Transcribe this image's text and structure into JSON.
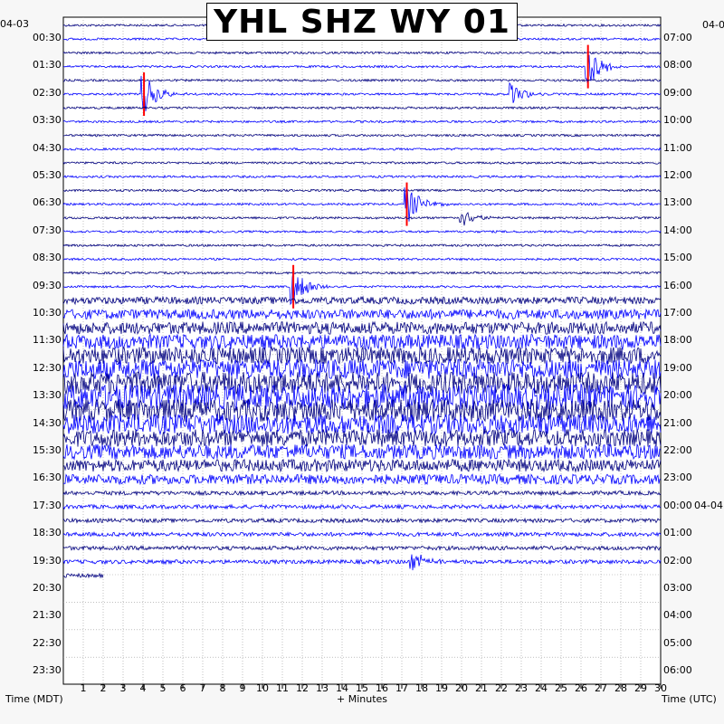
{
  "chart_data": {
    "type": "helicorder",
    "title": "YHL SHZ WY 01",
    "xlabel": "+ Minutes",
    "left_axis_label": "Time (MDT)",
    "right_axis_label": "Time (UTC)",
    "left_date_label": "04-03",
    "right_date_label": "04-0",
    "right_date_label_2": "04-04",
    "x_ticks": [
      "1",
      "2",
      "3",
      "4",
      "5",
      "6",
      "7",
      "8",
      "9",
      "10",
      "11",
      "12",
      "13",
      "14",
      "15",
      "16",
      "17",
      "18",
      "19",
      "20",
      "21",
      "22",
      "23",
      "24",
      "25",
      "26",
      "27",
      "28",
      "29",
      "30"
    ],
    "xlim": [
      0,
      30
    ],
    "grid": true,
    "left_times": [
      "00:30",
      "01:30",
      "02:30",
      "03:30",
      "04:30",
      "05:30",
      "06:30",
      "07:30",
      "08:30",
      "09:30",
      "10:30",
      "11:30",
      "12:30",
      "13:30",
      "14:30",
      "15:30",
      "16:30",
      "17:30",
      "18:30",
      "19:30",
      "20:30",
      "21:30",
      "22:30",
      "23:30"
    ],
    "right_times": [
      "07:00",
      "08:00",
      "09:00",
      "10:00",
      "11:00",
      "12:00",
      "13:00",
      "14:00",
      "15:00",
      "16:00",
      "17:00",
      "18:00",
      "19:00",
      "20:00",
      "21:00",
      "22:00",
      "23:00",
      "00:00",
      "01:00",
      "02:00",
      "03:00",
      "04:00",
      "05:00",
      "06:00"
    ],
    "trace_colors": [
      "#000080",
      "#0000ff"
    ],
    "clip_color": "#ff0000",
    "traces_recorded": 41,
    "events": [
      {
        "trace": 3,
        "minute": 26.3,
        "amplitude": "large"
      },
      {
        "trace": 5,
        "minute": 4.0,
        "amplitude": "large"
      },
      {
        "trace": 5,
        "minute": 22.5,
        "amplitude": "medium"
      },
      {
        "trace": 13,
        "minute": 17.2,
        "amplitude": "large"
      },
      {
        "trace": 14,
        "minute": 20.0,
        "amplitude": "medium"
      },
      {
        "trace": 19,
        "minute": 11.5,
        "amplitude": "large"
      },
      {
        "trace": 39,
        "minute": 17.5,
        "amplitude": "medium"
      }
    ]
  }
}
